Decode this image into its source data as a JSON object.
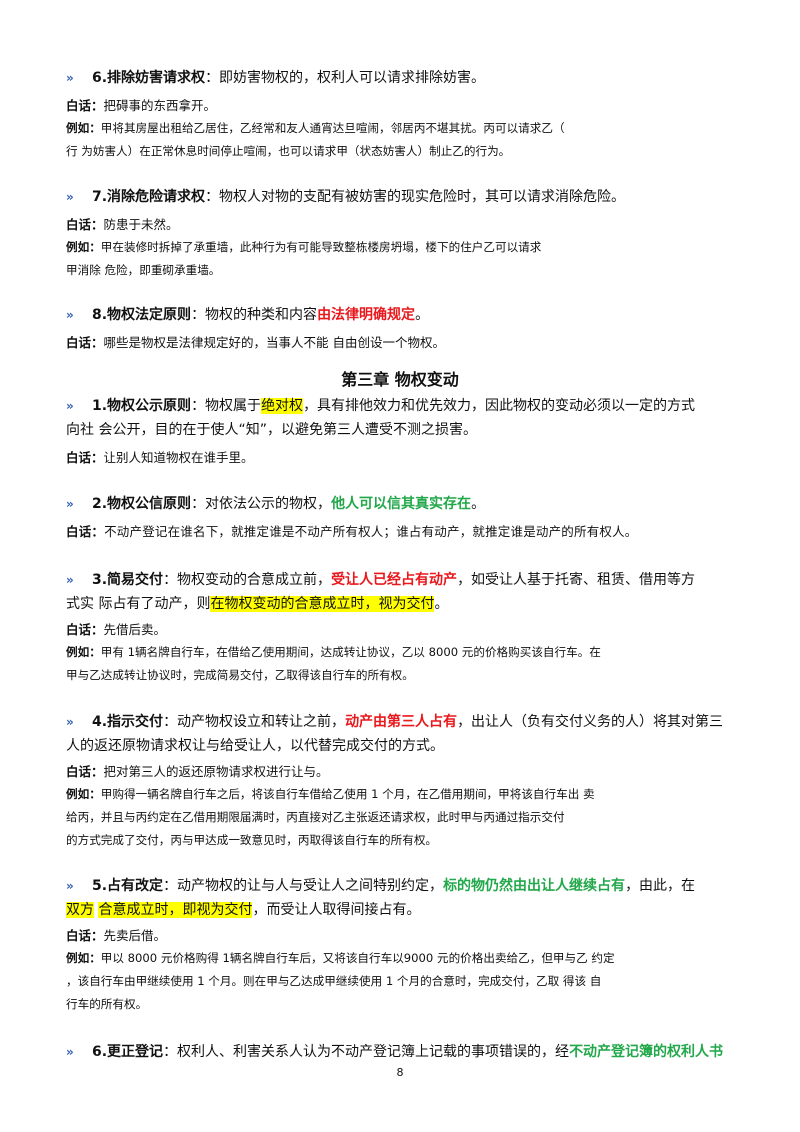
{
  "arrow": "»",
  "s6": {
    "title": "6.排除妨害请求权",
    "text": "：即妨害物权的，权利人可以请求排除妨害。",
    "bai_label": "白话：",
    "bai": "把碍事的东西拿开。",
    "eg_label": "例如：",
    "eg1": "甲将其房屋出租给乙居住，乙经常和友人通宵达旦喧闹，邻居丙不堪其扰。丙可以请求乙（",
    "eg2": "行 为妨害人）在正常休息时间停止喧闹，也可以请求甲（状态妨害人）制止乙的行为。"
  },
  "s7": {
    "title": "7.消除危险请求权",
    "text": "：物权人对物的支配有被妨害的现实危险时，其可以请求消除危险。",
    "bai_label": "白话：",
    "bai": "防患于未然。",
    "eg_label": "例如：",
    "eg1": "甲在装修时拆掉了承重墙，此种行为有可能导致整栋楼房坍塌，楼下的住户乙可以请求",
    "eg2": "甲消除 危险，即重砌承重墙。"
  },
  "s8": {
    "title": "8.物权法定原则",
    "text": "：物权的种类和内容",
    "red": "由法律明确规定",
    "end": "。",
    "bai_label": "白话：",
    "bai": "哪些是物权是法律规定好的，当事人不能 自由创设一个物权。"
  },
  "chapter": "第三章 物权变动",
  "c1": {
    "title": "1.物权公示原则",
    "t1": "：物权属于",
    "hl": "绝对权",
    "t2": "，具有排他效力和优先效力，因此物权的变动必须以一定的方式",
    "line2": "向社 会公开，目的在于使人“知”，以避免第三人遭受不测之损害。",
    "bai_label": "白话：",
    "bai": "让别人知道物权在谁手里。"
  },
  "c2": {
    "title": "2.物权公信原则",
    "t1": "：对依法公示的物权，",
    "green": "他人可以信其真实存在",
    "end": "。",
    "bai_label": "白话：",
    "bai": "不动产登记在谁名下，就推定谁是不动产所有权人；谁占有动产，就推定谁是动产的所有权人。"
  },
  "c3": {
    "title": "3.简易交付",
    "t1": "：物权变动的合意成立前，",
    "red": "受让人已经占有动产",
    "t2": "，如受让人基于托寄、租赁、借用等方",
    "l2a": "式实 际占有了动产，则",
    "hl": "在物权变动的合意成立时，视为交付",
    "end": "。",
    "bai_label": "白话：",
    "bai": "先借后卖。",
    "eg_label": "例如：",
    "eg1": "甲有 1辆名牌自行车，在借给乙使用期间，达成转让协议，乙以 8000 元的价格购买该自行车。在",
    "eg2": "甲与乙达成转让协议时，完成简易交付，乙取得该自行车的所有权。"
  },
  "c4": {
    "title": "4.指示交付",
    "t1": "：动产物权设立和转让之前，",
    "red": "动产由第三人占有",
    "t2": "，出让人（负有交付义务的人）将其对第三",
    "line2": "人的返还原物请求权让与给受让人，以代替完成交付的方式。",
    "bai_label": "白话：",
    "bai": "把对第三人的返还原物请求权进行让与。",
    "eg_label": "例如：",
    "eg1": "甲购得一辆名牌自行车之后，将该自行车借给乙使用 1 个月，在乙借用期间，甲将该自行车出 卖",
    "eg2": "给丙，并且与丙约定在乙借用期限届满时，丙直接对乙主张返还请求权，此时甲与丙通过指示交付",
    "eg3": "的方式完成了交付，丙与甲达成一致意见时，丙取得该自行车的所有权。"
  },
  "c5": {
    "title": "5.占有改定",
    "t1": "：动产物权的让与人与受让人之间特别约定，",
    "green": "标的物仍然由出让人继续占有",
    "t2": "，由此，在",
    "hl1": "双方",
    "hl2": "合意成立时，即视为交付",
    "t3": "，而受让人取得间接占有。",
    "bai_label": "白话：",
    "bai": "先卖后借。",
    "eg_label": "例如：",
    "eg1": "甲以 8000 元价格购得 1辆名牌自行车后，又将该自行车以9000 元的价格出卖给乙，但甲与乙 约定",
    "eg2": "，该自行车由甲继续使用 1 个月。则在甲与乙达成甲继续使用 1 个月的合意时，完成交付，乙取 得该 自",
    "eg3": "行车的所有权。"
  },
  "c6": {
    "title": "6.更正登记",
    "t1": "：权利人、利害关系人认为不动产登记簿上记载的事项错误的，经",
    "green": "不动产登记簿的权利人书"
  },
  "page_number": "8"
}
